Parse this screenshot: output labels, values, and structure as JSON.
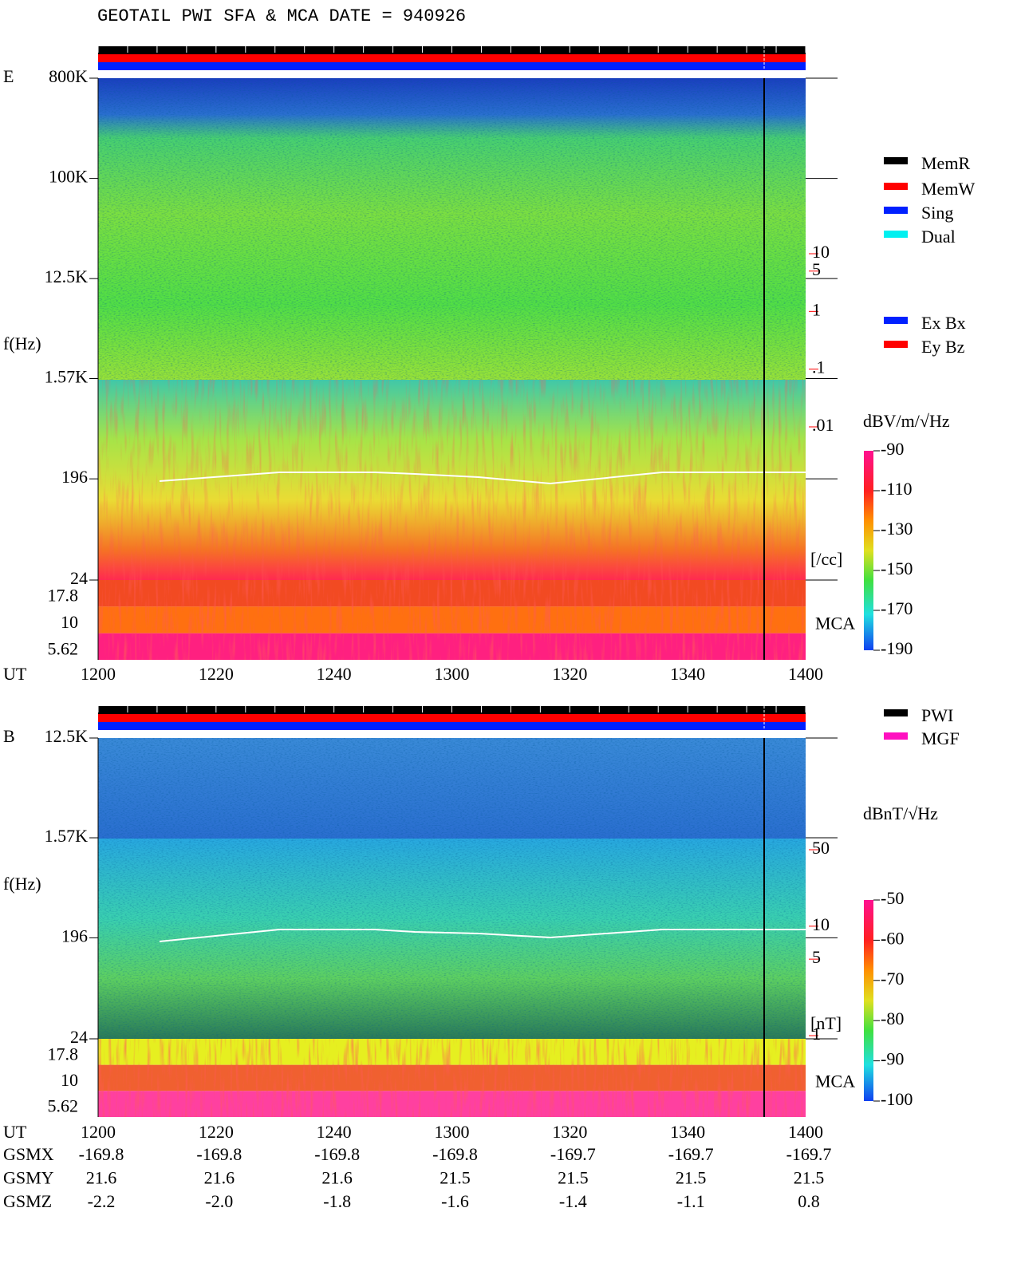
{
  "title": "GEOTAIL  PWI SFA & MCA   DATE = 940926",
  "chart_data": [
    {
      "type": "spectrogram",
      "panel_label": "E",
      "y_label": "f(Hz)",
      "x_label": "UT",
      "xticks": [
        "1200",
        "1220",
        "1240",
        "1300",
        "1320",
        "1340",
        "1400"
      ],
      "log_y": true,
      "ylim": [
        24,
        800000
      ],
      "yticks": [
        {
          "value": 800000,
          "label": "800K"
        },
        {
          "value": 100000,
          "label": "100K"
        },
        {
          "value": 12500,
          "label": "12.5K"
        },
        {
          "value": 1570,
          "label": "1.57K"
        },
        196,
        24
      ],
      "mca_ticks": [
        17.8,
        10,
        5.62
      ],
      "mca_label": "MCA",
      "colorbar": {
        "label": "dBV/m/√Hz",
        "lim": [
          -190,
          -90
        ],
        "ticks": [
          -90,
          -110,
          -130,
          -150,
          -170,
          -190
        ]
      },
      "density_scale": {
        "lim": [
          0.01,
          10
        ],
        "ticks": [
          10,
          5,
          1,
          {
            "value": 0.1,
            "label": ".1"
          },
          {
            "value": 0.01,
            "label": ".01"
          }
        ],
        "unit": "[/cc]",
        "color": "#ff0000"
      },
      "legend": [
        {
          "name": "MemR",
          "color": "#000000"
        },
        {
          "name": "MemW",
          "color": "#ff0000"
        },
        {
          "name": "Sing",
          "color": "#0020ff"
        },
        {
          "name": "Dual",
          "color": "#00f0f0"
        }
      ],
      "legend2": [
        {
          "name": "Ex Bx",
          "color": "#0020ff"
        },
        {
          "name": "Ey Bz",
          "color": "#ff0000"
        }
      ]
    },
    {
      "type": "spectrogram",
      "panel_label": "B",
      "y_label": "f(Hz)",
      "x_label": "UT",
      "xticks": [
        "1200",
        "1220",
        "1240",
        "1300",
        "1320",
        "1340",
        "1400"
      ],
      "log_y": true,
      "ylim": [
        24,
        12500
      ],
      "yticks": [
        {
          "value": 12500,
          "label": "12.5K"
        },
        {
          "value": 1570,
          "label": "1.57K"
        },
        196,
        24
      ],
      "mca_ticks": [
        17.8,
        10,
        5.62
      ],
      "mca_label": "MCA",
      "colorbar": {
        "label": "dBnT/√Hz",
        "lim": [
          -100,
          -50
        ],
        "ticks": [
          -50,
          -60,
          -70,
          -80,
          -90,
          -100
        ]
      },
      "density_scale": {
        "lim": [
          1,
          50
        ],
        "ticks": [
          50,
          10,
          5,
          1
        ],
        "unit": "[nT]",
        "color": "#ff0000"
      },
      "legend": [
        {
          "name": "PWI",
          "color": "#000000"
        },
        {
          "name": "MGF",
          "color": "#ff10c0"
        }
      ]
    }
  ],
  "orbit": {
    "rows": [
      {
        "name": "GSMX",
        "values": [
          -169.8,
          -169.8,
          -169.8,
          -169.8,
          -169.7,
          -169.7,
          -169.7
        ]
      },
      {
        "name": "GSMY",
        "values": [
          21.6,
          21.6,
          21.6,
          21.5,
          21.5,
          21.5,
          21.5
        ]
      },
      {
        "name": "GSMZ",
        "values": [
          -2.2,
          -2.0,
          -1.8,
          -1.6,
          -1.4,
          -1.1,
          0.8
        ],
        "value_labels": [
          "-2.2",
          "-2.0",
          "-1.8",
          "-1.6",
          "-1.4",
          "-1.1",
          "0.8"
        ]
      }
    ]
  }
}
